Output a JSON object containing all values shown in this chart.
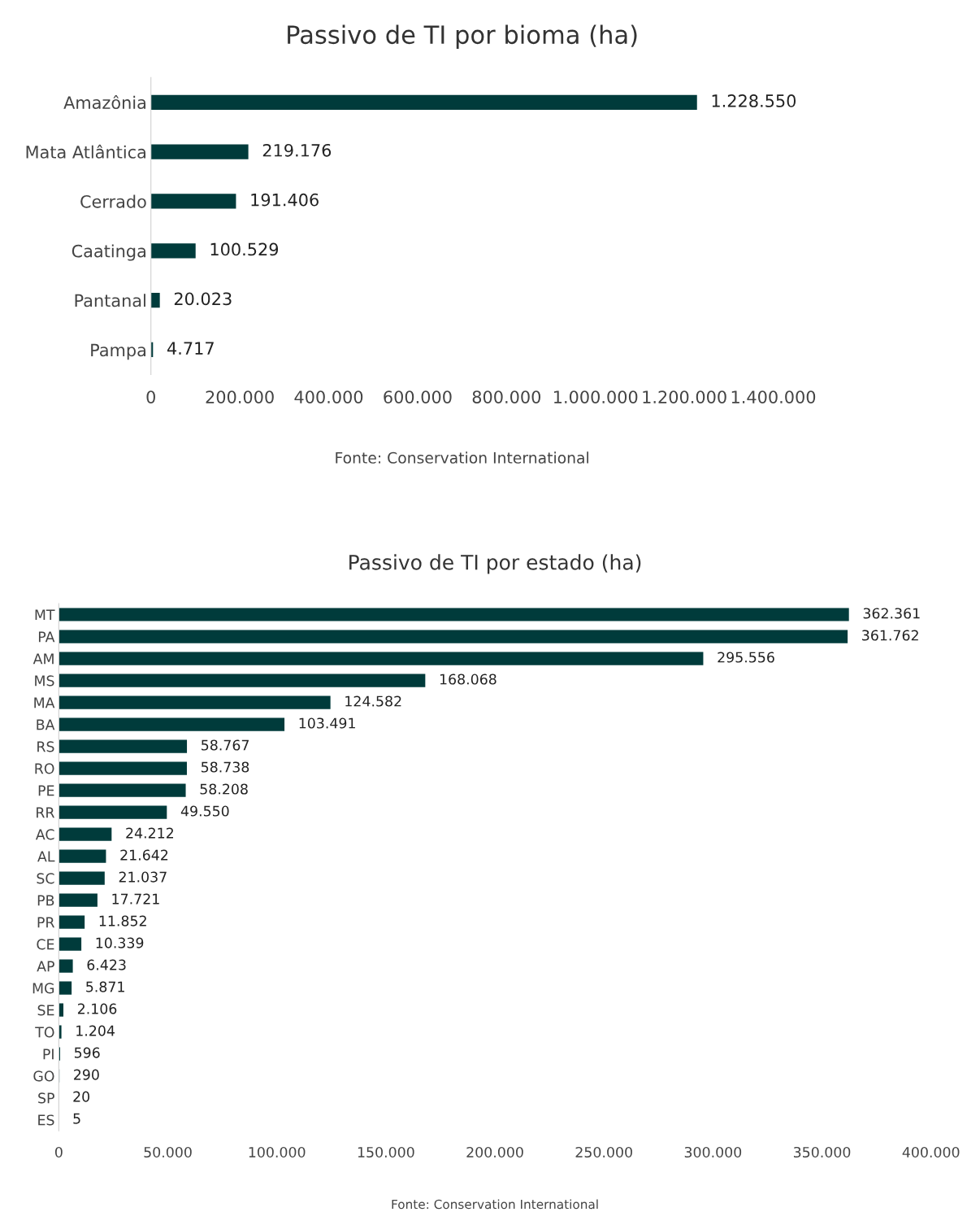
{
  "chart_data": [
    {
      "type": "bar",
      "orientation": "horizontal",
      "title": "Passivo de TI por bioma (ha)",
      "color": "#003b3b",
      "categories": [
        "Amazônia",
        "Mata Atlântica",
        "Cerrado",
        "Caatinga",
        "Pantanal",
        "Pampa"
      ],
      "values": [
        1228550,
        219176,
        191406,
        100529,
        20023,
        4717
      ],
      "value_labels": [
        "1.228.550",
        "219.176",
        "191.406",
        "100.529",
        "20.023",
        "4.717"
      ],
      "xlim": [
        0,
        1400000
      ],
      "xticks": [
        0,
        {
          "value": 200000,
          "label": "200.000"
        },
        {
          "value": 400000,
          "label": "400.000"
        },
        {
          "value": 600000,
          "label": "600.000"
        },
        {
          "value": 800000,
          "label": "800.000"
        },
        {
          "value": 1000000,
          "label": "1.000.000"
        },
        {
          "value": 1200000,
          "label": "1.200.000"
        },
        {
          "value": 1400000,
          "label": "1.400.000"
        }
      ],
      "annotations": [
        "Fonte: Conservation International"
      ]
    },
    {
      "type": "bar",
      "orientation": "horizontal",
      "title": "Passivo de TI por estado (ha)",
      "color": "#003b3b",
      "categories": [
        "MT",
        "PA",
        "AM",
        "MS",
        "MA",
        "BA",
        "RS",
        "RO",
        "PE",
        "RR",
        "AC",
        "AL",
        "SC",
        "PB",
        "PR",
        "CE",
        "AP",
        "MG",
        "SE",
        "TO",
        "PI",
        "GO",
        "SP",
        "ES"
      ],
      "values": [
        362361,
        361762,
        295556,
        168068,
        124582,
        103491,
        58767,
        58738,
        58208,
        49550,
        24212,
        21642,
        21037,
        17721,
        11852,
        10339,
        6423,
        5871,
        2106,
        1204,
        596,
        290,
        20,
        5
      ],
      "value_labels": [
        "362.361",
        "361.762",
        "295.556",
        "168.068",
        "124.582",
        "103.491",
        "58.767",
        "58.738",
        "58.208",
        "49.550",
        "24.212",
        "21.642",
        "21.037",
        "17.721",
        "11.852",
        "10.339",
        "6.423",
        "5.871",
        "2.106",
        "1.204",
        "596",
        "290",
        "20",
        "5"
      ],
      "xlim": [
        0,
        400000
      ],
      "xticks": [
        0,
        {
          "value": 50000,
          "label": "50.000"
        },
        {
          "value": 100000,
          "label": "100.000"
        },
        {
          "value": 150000,
          "label": "150.000"
        },
        {
          "value": 200000,
          "label": "200.000"
        },
        {
          "value": 250000,
          "label": "250.000"
        },
        {
          "value": 300000,
          "label": "300.000"
        },
        {
          "value": 350000,
          "label": "350.000"
        },
        {
          "value": 400000,
          "label": "400.000"
        }
      ],
      "annotations": [
        "Fonte: Conservation International"
      ]
    }
  ]
}
